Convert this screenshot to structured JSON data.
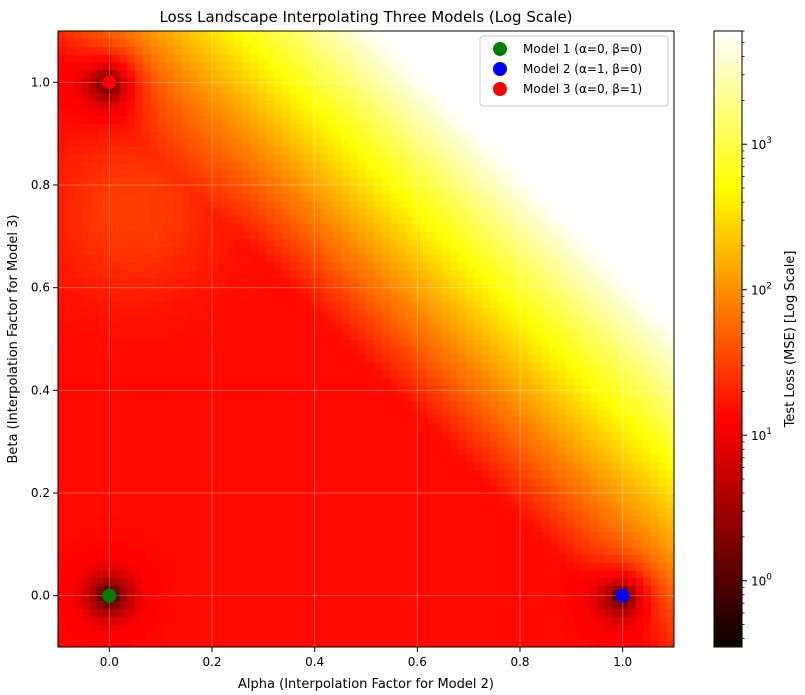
{
  "chart_data": {
    "type": "heatmap",
    "title": "Loss Landscape Interpolating Three Models (Log Scale)",
    "xlabel": "Alpha (Interpolation Factor for Model 2)",
    "ylabel": "Beta (Interpolation Factor for Model 3)",
    "xlim": [
      -0.1,
      1.1
    ],
    "ylim": [
      -0.1,
      1.1
    ],
    "xticks": [
      0.0,
      0.2,
      0.4,
      0.6,
      0.8,
      1.0
    ],
    "yticks": [
      0.0,
      0.2,
      0.4,
      0.6,
      0.8,
      1.0
    ],
    "xtick_labels": [
      "0.0",
      "0.2",
      "0.4",
      "0.6",
      "0.8",
      "1.0"
    ],
    "ytick_labels": [
      "0.0",
      "0.2",
      "0.4",
      "0.6",
      "0.8",
      "1.0"
    ],
    "grid": true,
    "colormap": "hot",
    "colorbar": {
      "label": "Test Loss (MSE) [Log Scale]",
      "scale": "log",
      "range": [
        0.35,
        6000
      ],
      "major_ticks": [
        1,
        10,
        100,
        1000
      ],
      "tick_bases": [
        "10",
        "10",
        "10",
        "10"
      ],
      "tick_exponents": [
        "0",
        "1",
        "2",
        "3"
      ]
    },
    "points": [
      {
        "name": "Model 1 (α=0, β=0)",
        "alpha": 0.0,
        "beta": 0.0,
        "color": "#008000"
      },
      {
        "name": "Model 2 (α=1, β=0)",
        "alpha": 1.0,
        "beta": 0.0,
        "color": "#0000ff"
      },
      {
        "name": "Model 3 (α=0, β=1)",
        "alpha": 0.0,
        "beta": 1.0,
        "color": "#ff0000"
      }
    ],
    "legend_position": "top-right"
  }
}
